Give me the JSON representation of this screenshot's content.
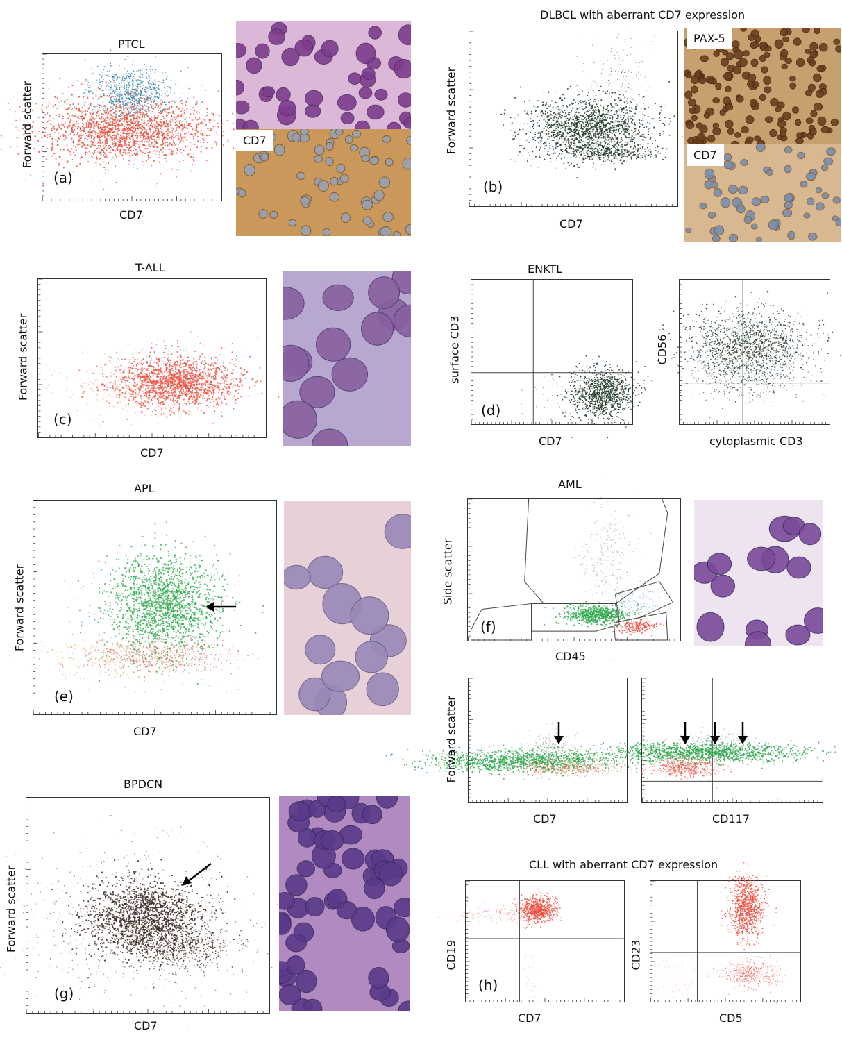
{
  "panels": {
    "a": {
      "label": "(a)",
      "title": "PTCL",
      "xlabel": "CD7",
      "ylabel": "Forward scatter",
      "stain": "CD7"
    },
    "b": {
      "label": "(b)",
      "title": "DLBCL with aberrant CD7 expression",
      "xlabel": "CD7",
      "ylabel": "Forward scatter",
      "stain_top": "PAX-5",
      "stain_bottom": "CD7"
    },
    "c": {
      "label": "(c)",
      "title": "T-ALL",
      "xlabel": "CD7",
      "ylabel": "Forward scatter"
    },
    "d": {
      "label": "(d)",
      "title": "ENKTL",
      "xlabel": "CD7",
      "ylabel": "surface CD3",
      "xlabel2": "cytoplasmic CD3",
      "ylabel2": "CD56"
    },
    "e": {
      "label": "(e)",
      "title": "APL",
      "xlabel": "CD7",
      "ylabel": "Forward scatter"
    },
    "f": {
      "label": "(f)",
      "title": "AML",
      "xlabel": "CD45",
      "ylabel": "Side scatter",
      "xlabel2": "CD7",
      "xlabel3": "CD117",
      "ylabel2": "Forward scatter"
    },
    "g": {
      "label": "(g)",
      "title": "BPDCN",
      "xlabel": "CD7",
      "ylabel": "Forward scatter"
    },
    "h": {
      "label": "(h)",
      "title": "CLL with aberrant CD7 expression",
      "xlabel": "CD7",
      "ylabel": "CD19",
      "xlabel2": "CD5",
      "ylabel2": "CD23"
    }
  },
  "colors": {
    "red": "#f04a3a",
    "blue": "#2e7fa0",
    "darkgreen": "#1f3a26",
    "green": "#2aa84a",
    "brown": "#3d2a22",
    "grey": "#8a8a8a",
    "he_purple": "#8c4d9a",
    "ihc_brown": "#b4864a"
  },
  "icons": [
    "arrow-left-icon",
    "arrow-down-icon"
  ]
}
